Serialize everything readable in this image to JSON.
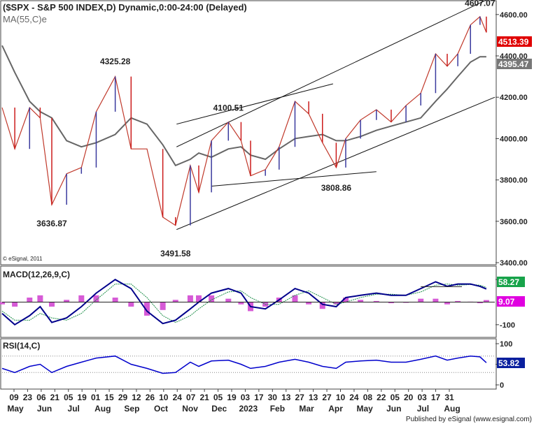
{
  "colors": {
    "up": "#3a3a9e",
    "down": "#cc1b1b",
    "ma": "#666666",
    "macd": "#00008b",
    "signal": "#1f8f4a",
    "histogram": "#d65ad6",
    "rsi": "#0000cc",
    "last_price_bg": "#e00000",
    "ma_bg": "#777777",
    "macd_bg": "#17a34a",
    "hist_bg": "#e000e0",
    "rsi_bg": "#0a1f9e"
  },
  "header": {
    "title": "($SPX - S&P 500 INDEX,D) Dynamic,0:00-24:00 (Delayed)",
    "ma_label": "MA(55,C)e"
  },
  "price_panel": {
    "last_price": "4513.39",
    "ma_value": "4395.47",
    "y_ticks": [
      "4600.00",
      "4400.00",
      "4200.00",
      "4000.00",
      "3800.00",
      "3600.00",
      "3400.00"
    ],
    "annotations": [
      "4607.07",
      "4325.28",
      "4100.51",
      "3636.87",
      "3491.58",
      "3808.86"
    ],
    "copyright": "© eSignal, 2011"
  },
  "macd_panel": {
    "label": "MACD(12,26,9,C)",
    "value": "58.27",
    "hist_value": "9.07",
    "y_ticks": [
      "100",
      "-100"
    ]
  },
  "rsi_panel": {
    "label": "RSI(14,C)",
    "value": "53.82",
    "y_ticks": [
      "100",
      "50",
      "0"
    ]
  },
  "x_axis": {
    "day_labels": [
      "09",
      "23",
      "06",
      "21",
      "05",
      "19",
      "01",
      "15",
      "29",
      "12",
      "26",
      "10",
      "24",
      "07",
      "21",
      "05",
      "19",
      "03",
      "17",
      "30",
      "13",
      "27",
      "13",
      "27",
      "10",
      "24",
      "08",
      "22",
      "05",
      "20",
      "03",
      "17",
      "31"
    ],
    "month_labels": [
      "May",
      "Jun",
      "Jul",
      "Aug",
      "Sep",
      "Oct",
      "Nov",
      "Dec",
      "2023",
      "Feb",
      "Mar",
      "Apr",
      "May",
      "Jun",
      "Jul",
      "Aug"
    ]
  },
  "footer": "Published by eSignal (www.esignal.com)",
  "chart_data": {
    "type": "line",
    "title": "($SPX - S&P 500 INDEX,D) Dynamic,0:00-24:00 (Delayed)",
    "price": {
      "x": [
        "2022-05-01",
        "2022-05-13",
        "2022-05-27",
        "2022-06-06",
        "2022-06-17",
        "2022-07-01",
        "2022-07-15",
        "2022-07-29",
        "2022-08-16",
        "2022-08-31",
        "2022-09-15",
        "2022-09-30",
        "2022-10-12",
        "2022-10-26",
        "2022-11-03",
        "2022-11-15",
        "2022-12-01",
        "2022-12-13",
        "2022-12-22",
        "2023-01-05",
        "2023-01-18",
        "2023-02-02",
        "2023-02-15",
        "2023-02-28",
        "2023-03-13",
        "2023-03-22",
        "2023-04-05",
        "2023-04-20",
        "2023-05-04",
        "2023-05-18",
        "2023-06-01",
        "2023-06-15",
        "2023-06-26",
        "2023-07-06",
        "2023-07-18",
        "2023-07-27",
        "2023-08-02"
      ],
      "close": [
        4150,
        3950,
        4150,
        4100,
        3680,
        3830,
        3860,
        4130,
        4300,
        3950,
        3950,
        3620,
        3580,
        3870,
        3740,
        3990,
        4080,
        3990,
        3820,
        3850,
        3960,
        4180,
        4120,
        3980,
        3860,
        4000,
        4090,
        4140,
        4080,
        4160,
        4220,
        4410,
        4350,
        4410,
        4550,
        4590,
        4513.39
      ],
      "ma_55": [
        4450,
        4320,
        4180,
        4130,
        4100,
        3990,
        3960,
        3980,
        4020,
        4100,
        4070,
        3970,
        3870,
        3900,
        3930,
        3910,
        3950,
        3960,
        3920,
        3900,
        3950,
        4000,
        4010,
        4020,
        3990,
        3990,
        4010,
        4040,
        4060,
        4080,
        4100,
        4180,
        4240,
        4300,
        4370,
        4395.47,
        4395.47
      ],
      "ylim": [
        3400,
        4650
      ],
      "y_axis_scale": "linear",
      "trendlines": [
        {
          "x": [
            "2022-10-13",
            "2023-08-10"
          ],
          "y": [
            3560,
            4200
          ]
        },
        {
          "x": [
            "2022-10-13",
            "2023-08-10"
          ],
          "y": [
            3960,
            4690
          ]
        },
        {
          "x": [
            "2022-11-15",
            "2023-04-20"
          ],
          "y": [
            3770,
            3840
          ]
        },
        {
          "x": [
            "2022-10-13",
            "2023-03-10"
          ],
          "y": [
            4070,
            4265
          ]
        }
      ],
      "annotations": [
        {
          "text": "4607.07",
          "x": "2023-07-27",
          "y": 4607.07
        },
        {
          "text": "4325.28",
          "x": "2022-08-16",
          "y": 4325.28
        },
        {
          "text": "4100.51",
          "x": "2022-12-01",
          "y": 4100.51
        },
        {
          "text": "3636.87",
          "x": "2022-06-17",
          "y": 3636.87
        },
        {
          "text": "3491.58",
          "x": "2022-10-12",
          "y": 3491.58
        },
        {
          "text": "3808.86",
          "x": "2023-03-13",
          "y": 3808.86
        }
      ]
    },
    "macd": {
      "x": [
        "2022-05-01",
        "2022-05-13",
        "2022-05-27",
        "2022-06-06",
        "2022-06-17",
        "2022-07-01",
        "2022-07-15",
        "2022-07-29",
        "2022-08-16",
        "2022-08-31",
        "2022-09-15",
        "2022-09-30",
        "2022-10-12",
        "2022-10-26",
        "2022-11-03",
        "2022-11-15",
        "2022-12-01",
        "2022-12-13",
        "2022-12-22",
        "2023-01-05",
        "2023-01-18",
        "2023-02-02",
        "2023-02-15",
        "2023-02-28",
        "2023-03-13",
        "2023-03-22",
        "2023-04-05",
        "2023-04-20",
        "2023-05-04",
        "2023-05-18",
        "2023-06-01",
        "2023-06-15",
        "2023-06-26",
        "2023-07-06",
        "2023-07-18",
        "2023-07-27",
        "2023-08-02"
      ],
      "macd": [
        -50,
        -100,
        -60,
        -20,
        -90,
        -70,
        -20,
        40,
        100,
        60,
        -40,
        -95,
        -80,
        -30,
        0,
        40,
        60,
        40,
        -20,
        -30,
        10,
        60,
        40,
        -10,
        -20,
        20,
        30,
        40,
        30,
        30,
        60,
        90,
        70,
        80,
        80,
        70,
        58.27
      ],
      "signal": [
        -40,
        -80,
        -80,
        -50,
        -70,
        -80,
        -50,
        10,
        80,
        80,
        20,
        -60,
        -90,
        -60,
        -30,
        10,
        45,
        50,
        20,
        -10,
        -10,
        30,
        50,
        20,
        -10,
        0,
        20,
        35,
        35,
        30,
        45,
        75,
        80,
        75,
        78,
        75,
        65
      ],
      "histogram": [
        -10,
        -20,
        20,
        30,
        -20,
        10,
        30,
        30,
        20,
        -20,
        -60,
        -35,
        10,
        30,
        30,
        30,
        15,
        -10,
        -40,
        -20,
        20,
        30,
        -10,
        -30,
        -10,
        20,
        10,
        5,
        -5,
        0,
        15,
        15,
        -10,
        5,
        2,
        -5,
        9.07
      ],
      "ylim": [
        -150,
        150
      ],
      "hline": 0,
      "hline_upper": 58.27
    },
    "rsi": {
      "x": [
        "2022-05-01",
        "2022-05-13",
        "2022-05-27",
        "2022-06-06",
        "2022-06-17",
        "2022-07-01",
        "2022-07-15",
        "2022-07-29",
        "2022-08-16",
        "2022-08-31",
        "2022-09-15",
        "2022-09-30",
        "2022-10-12",
        "2022-10-26",
        "2022-11-03",
        "2022-11-15",
        "2022-12-01",
        "2022-12-13",
        "2022-12-22",
        "2023-01-05",
        "2023-01-18",
        "2023-02-02",
        "2023-02-15",
        "2023-02-28",
        "2023-03-13",
        "2023-03-22",
        "2023-04-05",
        "2023-04-20",
        "2023-05-04",
        "2023-05-18",
        "2023-06-01",
        "2023-06-15",
        "2023-06-26",
        "2023-07-06",
        "2023-07-18",
        "2023-07-27",
        "2023-08-02"
      ],
      "values": [
        40,
        30,
        45,
        50,
        30,
        45,
        55,
        65,
        70,
        50,
        40,
        28,
        30,
        55,
        45,
        58,
        60,
        50,
        40,
        45,
        55,
        62,
        55,
        45,
        40,
        55,
        58,
        60,
        55,
        55,
        62,
        70,
        60,
        65,
        70,
        68,
        53.82
      ],
      "ylim": [
        0,
        100
      ],
      "reference_lines": [
        70,
        30
      ]
    }
  }
}
